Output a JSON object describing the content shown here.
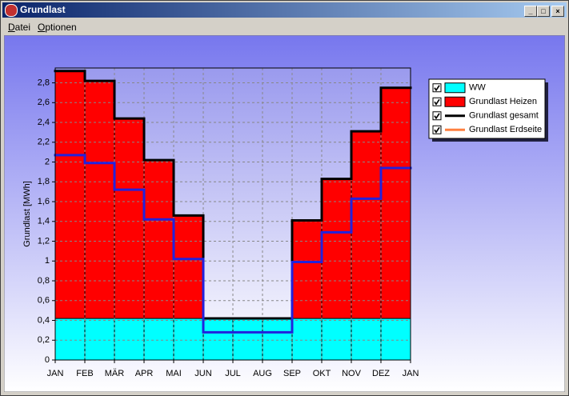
{
  "window": {
    "title": "Grundlast",
    "menu": [
      "Datei",
      "Optionen"
    ]
  },
  "chart_data": {
    "type": "bar",
    "stacked": true,
    "ylabel": "Grundlast [MWh]",
    "xlim": [
      0,
      12
    ],
    "xticks": [
      {
        "value": 0,
        "label": "JAN"
      },
      {
        "value": 1,
        "label": "FEB"
      },
      {
        "value": 2,
        "label": "MÄR"
      },
      {
        "value": 3,
        "label": "APR"
      },
      {
        "value": 4,
        "label": "MAI"
      },
      {
        "value": 5,
        "label": "JUN"
      },
      {
        "value": 6,
        "label": "JUL"
      },
      {
        "value": 7,
        "label": "AUG"
      },
      {
        "value": 8,
        "label": "SEP"
      },
      {
        "value": 9,
        "label": "OKT"
      },
      {
        "value": 10,
        "label": "NOV"
      },
      {
        "value": 11,
        "label": "DEZ"
      },
      {
        "value": 12,
        "label": "JAN"
      }
    ],
    "ylim": [
      0,
      2.95
    ],
    "yticks": [
      0,
      {
        "value": 0.2,
        "label": "0,2"
      },
      {
        "value": 0.4,
        "label": "0,4"
      },
      {
        "value": 0.6,
        "label": "0,6"
      },
      {
        "value": 0.8,
        "label": "0,8"
      },
      1,
      {
        "value": 1.2,
        "label": "1,2"
      },
      {
        "value": 1.4,
        "label": "1,4"
      },
      {
        "value": 1.6,
        "label": "1,6"
      },
      {
        "value": 1.8,
        "label": "1,8"
      },
      2,
      {
        "value": 2.2,
        "label": "2,2"
      },
      {
        "value": 2.4,
        "label": "2,4"
      },
      {
        "value": 2.6,
        "label": "2,6"
      },
      {
        "value": 2.8,
        "label": "2,8"
      }
    ],
    "grid": true,
    "legend": "upper right",
    "series": [
      {
        "name": "WW",
        "kind": "bar",
        "color": "#00ffff",
        "values": [
          0.42,
          0.42,
          0.42,
          0.42,
          0.42,
          0.42,
          0.42,
          0.42,
          0.42,
          0.42,
          0.42,
          0.42
        ]
      },
      {
        "name": "Grundlast Heizen",
        "kind": "bar",
        "color": "#ff0000",
        "values": [
          2.5,
          2.4,
          2.02,
          1.6,
          1.04,
          0,
          0,
          0,
          0.99,
          1.41,
          1.89,
          2.33
        ]
      },
      {
        "name": "Grundlast gesamt",
        "kind": "step",
        "color": "#000000",
        "values": [
          2.92,
          2.82,
          2.44,
          2.02,
          1.46,
          0.42,
          0.42,
          0.42,
          1.41,
          1.83,
          2.31,
          2.75
        ]
      },
      {
        "name": "Grundlast Erdseite",
        "kind": "step",
        "color": "#2222dd",
        "legend_color": "#ff8040",
        "values": [
          2.07,
          1.99,
          1.72,
          1.42,
          1.02,
          0.28,
          0.28,
          0.28,
          0.99,
          1.29,
          1.63,
          1.94
        ]
      }
    ]
  }
}
